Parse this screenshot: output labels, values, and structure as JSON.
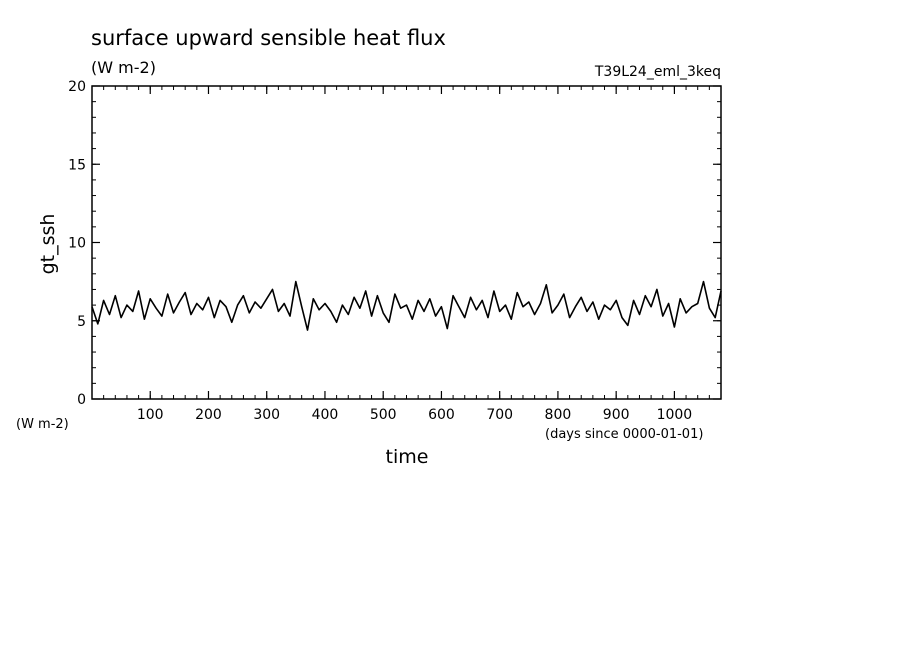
{
  "chart_data": {
    "type": "line",
    "title": "surface upward sensible heat flux",
    "subtitle": "(W m-2)",
    "experiment": "T39L24_eml_3keq",
    "xlabel": "time",
    "xunits": "(days since 0000-01-01)",
    "ylabel": "gt_ssh",
    "yunits": "(W m-2)",
    "xlim": [
      0,
      1080
    ],
    "ylim": [
      0,
      20
    ],
    "xticks": [
      100,
      200,
      300,
      400,
      500,
      600,
      700,
      800,
      900,
      1000
    ],
    "xtick_labels": [
      "100",
      "200",
      "300",
      "400",
      "500",
      "600",
      "700",
      "800",
      "900",
      "1000"
    ],
    "yticks": [
      0,
      5,
      10,
      15,
      20
    ],
    "ytick_labels": [
      "0",
      "5",
      "10",
      "15",
      "20"
    ],
    "x_minor_step": 20,
    "y_minor_step": 1,
    "grid": false,
    "legend": "none",
    "line_color": "#000000",
    "series": [
      {
        "x": [
          0,
          10,
          20,
          30,
          40,
          50,
          60,
          70,
          80,
          90,
          100,
          110,
          120,
          130,
          140,
          150,
          160,
          170,
          180,
          190,
          200,
          210,
          220,
          230,
          240,
          250,
          260,
          270,
          280,
          290,
          300,
          310,
          320,
          330,
          340,
          350,
          360,
          370,
          380,
          390,
          400,
          410,
          420,
          430,
          440,
          450,
          460,
          470,
          480,
          490,
          500,
          510,
          520,
          530,
          540,
          550,
          560,
          570,
          580,
          590,
          600,
          610,
          620,
          630,
          640,
          650,
          660,
          670,
          680,
          690,
          700,
          710,
          720,
          730,
          740,
          750,
          760,
          770,
          780,
          790,
          800,
          810,
          820,
          830,
          840,
          850,
          860,
          870,
          880,
          890,
          900,
          910,
          920,
          930,
          940,
          950,
          960,
          970,
          980,
          990,
          1000,
          1010,
          1020,
          1030,
          1040,
          1050,
          1060,
          1070,
          1080
        ],
        "y": [
          5.9,
          4.8,
          6.3,
          5.4,
          6.6,
          5.2,
          6.0,
          5.6,
          6.9,
          5.1,
          6.4,
          5.8,
          5.3,
          6.7,
          5.5,
          6.2,
          6.8,
          5.4,
          6.1,
          5.7,
          6.5,
          5.2,
          6.3,
          5.9,
          4.9,
          6.0,
          6.6,
          5.5,
          6.2,
          5.8,
          6.4,
          7.0,
          5.6,
          6.1,
          5.3,
          7.5,
          5.9,
          4.4,
          6.4,
          5.7,
          6.1,
          5.6,
          4.9,
          6.0,
          5.4,
          6.5,
          5.8,
          6.9,
          5.3,
          6.6,
          5.5,
          4.9,
          6.7,
          5.8,
          6.0,
          5.1,
          6.3,
          5.6,
          6.4,
          5.3,
          5.9,
          4.5,
          6.6,
          5.9,
          5.2,
          6.5,
          5.7,
          6.3,
          5.2,
          6.9,
          5.6,
          6.0,
          5.1,
          6.8,
          5.9,
          6.2,
          5.4,
          6.1,
          7.3,
          5.5,
          6.0,
          6.7,
          5.2,
          5.9,
          6.5,
          5.6,
          6.2,
          5.1,
          6.0,
          5.7,
          6.3,
          5.2,
          4.7,
          6.3,
          5.4,
          6.6,
          5.9,
          7.0,
          5.3,
          6.1,
          4.6,
          6.4,
          5.5,
          5.9,
          6.1,
          7.5,
          5.8,
          5.2,
          6.9
        ]
      }
    ]
  }
}
